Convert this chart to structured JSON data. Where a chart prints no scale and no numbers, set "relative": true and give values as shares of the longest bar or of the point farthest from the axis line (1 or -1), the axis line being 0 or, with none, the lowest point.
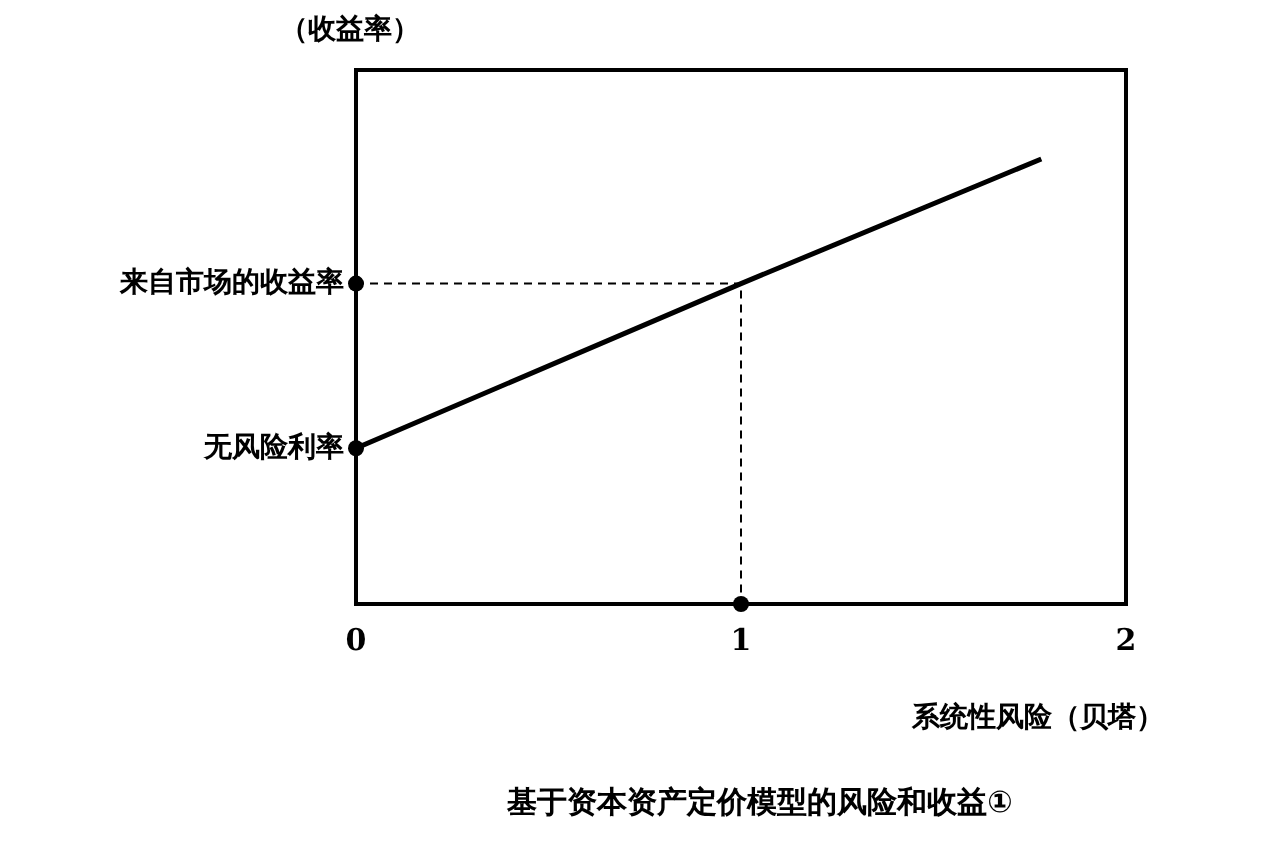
{
  "chart_data": {
    "type": "line",
    "title": "基于资本资产定价模型的风险和收益①",
    "xlabel": "系统性风险（贝塔）",
    "ylabel": "（收益率）",
    "relative": true,
    "x": [
      0,
      1,
      1.78
    ],
    "series": [
      {
        "color": "#000000",
        "values": [
          0.35,
          0.72,
          1
        ]
      }
    ],
    "xlim": [
      0,
      2
    ],
    "xticks": [
      0,
      1,
      2
    ],
    "grid": false,
    "legend": false,
    "marker": "none",
    "line_style": "solid",
    "annotations": [
      {
        "text": "无风险利率",
        "x": 0,
        "y": 0.35
      },
      {
        "text": "来自市场的收益率",
        "x": 0,
        "y": 0.72
      }
    ]
  }
}
